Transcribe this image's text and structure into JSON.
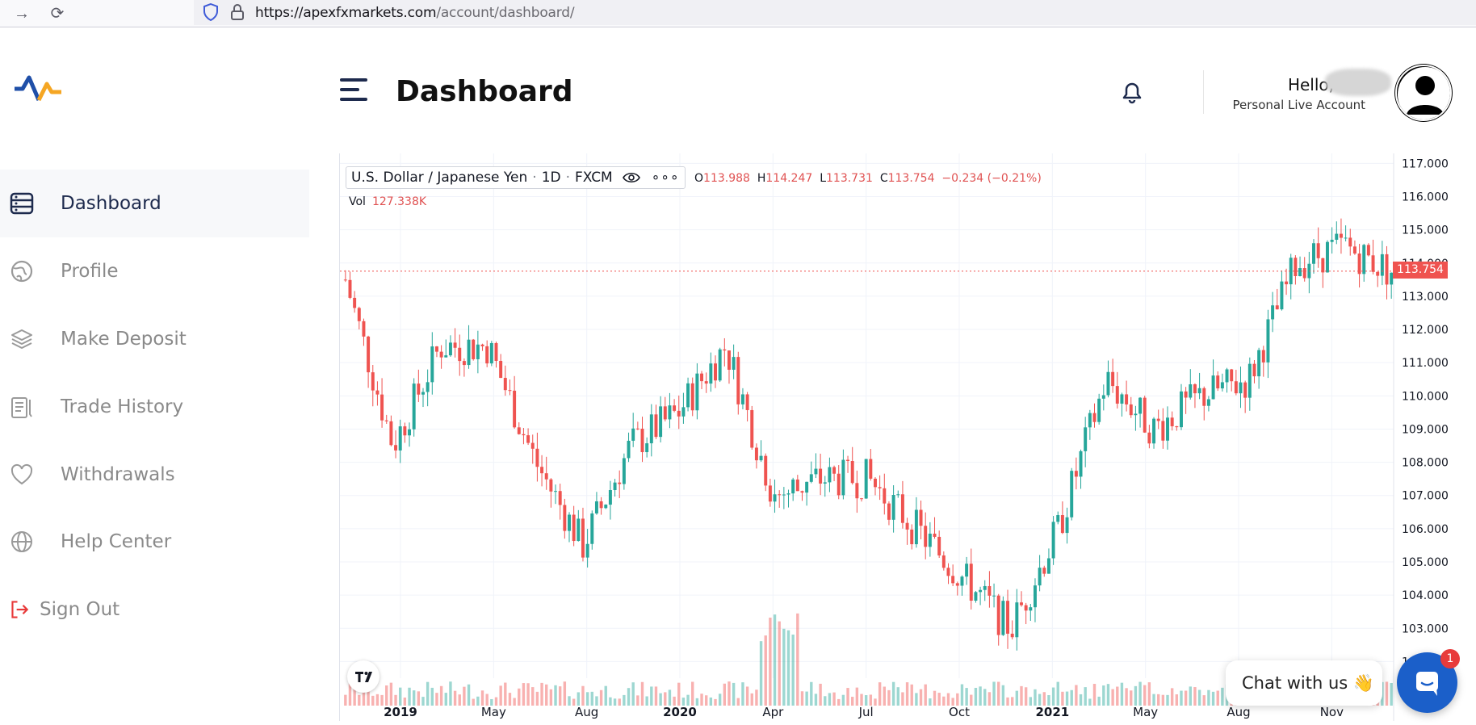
{
  "browser": {
    "url_host": "https://apexfxmarkets.com",
    "url_path": "/account/dashboard/"
  },
  "sidebar": {
    "items": [
      {
        "label": "Dashboard",
        "icon": "dashboard-icon"
      },
      {
        "label": "Profile",
        "icon": "globe-icon"
      },
      {
        "label": "Make Deposit",
        "icon": "layers-icon"
      },
      {
        "label": "Trade History",
        "icon": "clipboard-icon"
      },
      {
        "label": "Withdrawals",
        "icon": "heart-icon"
      },
      {
        "label": "Help Center",
        "icon": "globe-grid-icon"
      },
      {
        "label": "Sign Out",
        "icon": "sign-out-icon"
      }
    ]
  },
  "header": {
    "title": "Dashboard",
    "greeting": "Hello,",
    "account_type": "Personal Live Account"
  },
  "chart_header": {
    "symbol": "U.S. Dollar / Japanese Yen",
    "interval": "1D",
    "source": "FXCM",
    "open_k": "O",
    "open": "113.988",
    "high_k": "H",
    "high": "114.247",
    "low_k": "L",
    "low": "113.731",
    "close_k": "C",
    "close": "113.754",
    "change": "−0.234 (−0.21%)",
    "vol_label": "Vol",
    "vol_value": "127.338K",
    "last_price": "113.754"
  },
  "chat": {
    "label": "Chat with us 👋",
    "badge": "1"
  },
  "colors": {
    "up": "#26a69a",
    "down": "#ef5350",
    "nav_active": "#1d2a4d",
    "chat": "#1b5fc9"
  },
  "chart_data": {
    "type": "candlestick",
    "y_ticks": [
      "117.000",
      "116.000",
      "115.000",
      "114.000",
      "113.000",
      "112.000",
      "111.000",
      "110.000",
      "109.000",
      "108.000",
      "107.000",
      "106.000",
      "105.000",
      "104.000",
      "103.000",
      "102.000"
    ],
    "x_ticks": [
      "2019",
      "May",
      "Aug",
      "2020",
      "Apr",
      "Jul",
      "Oct",
      "2021",
      "May",
      "Aug",
      "Nov"
    ],
    "ylim": [
      101.5,
      117.3
    ],
    "series": [
      {
        "x": "2018-12",
        "close": 113.5
      },
      {
        "x": "2019-01",
        "close": 108.5
      },
      {
        "x": "2019-03",
        "close": 111.5
      },
      {
        "x": "2019-05",
        "close": 111.5
      },
      {
        "x": "2019-06",
        "close": 108.0
      },
      {
        "x": "2019-08",
        "close": 105.5
      },
      {
        "x": "2019-10",
        "close": 108.5
      },
      {
        "x": "2019-12",
        "close": 109.5
      },
      {
        "x": "2020-02",
        "close": 111.5
      },
      {
        "x": "2020-03",
        "close": 107.0
      },
      {
        "x": "2020-04",
        "close": 107.5
      },
      {
        "x": "2020-06",
        "close": 107.5
      },
      {
        "x": "2020-08",
        "close": 106.0
      },
      {
        "x": "2020-10",
        "close": 104.5
      },
      {
        "x": "2020-12",
        "close": 103.0
      },
      {
        "x": "2021-02",
        "close": 106.0
      },
      {
        "x": "2021-03",
        "close": 110.5
      },
      {
        "x": "2021-05",
        "close": 109.0
      },
      {
        "x": "2021-07",
        "close": 110.0
      },
      {
        "x": "2021-09",
        "close": 110.5
      },
      {
        "x": "2021-10",
        "close": 114.0
      },
      {
        "x": "2021-11",
        "close": 114.5
      },
      {
        "x": "2021-12",
        "close": 113.754
      }
    ]
  }
}
